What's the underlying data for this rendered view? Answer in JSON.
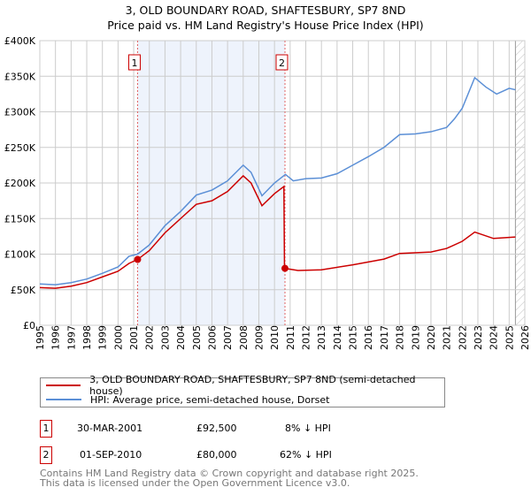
{
  "chart_data": {
    "type": "line",
    "title": "3, OLD BOUNDARY ROAD, SHAFTESBURY, SP7 8ND",
    "subtitle": "Price paid vs. HM Land Registry's House Price Index (HPI)",
    "xlim": [
      1995,
      2026
    ],
    "ylim": [
      0,
      400000
    ],
    "x_ticks": [
      "1995",
      "1996",
      "1997",
      "1998",
      "1999",
      "2000",
      "2001",
      "2002",
      "2003",
      "2004",
      "2005",
      "2006",
      "2007",
      "2008",
      "2009",
      "2010",
      "2011",
      "2012",
      "2013",
      "2014",
      "2015",
      "2016",
      "2017",
      "2018",
      "2019",
      "2020",
      "2021",
      "2022",
      "2023",
      "2024",
      "2025",
      "2026"
    ],
    "y_ticks": [
      {
        "v": 0,
        "l": "£0"
      },
      {
        "v": 50000,
        "l": "£50K"
      },
      {
        "v": 100000,
        "l": "£100K"
      },
      {
        "v": 150000,
        "l": "£150K"
      },
      {
        "v": 200000,
        "l": "£200K"
      },
      {
        "v": 250000,
        "l": "£250K"
      },
      {
        "v": 300000,
        "l": "£300K"
      },
      {
        "v": 350000,
        "l": "£350K"
      },
      {
        "v": 400000,
        "l": "£400K"
      }
    ],
    "grid": true,
    "shaded_range": [
      2001.25,
      2010.67
    ],
    "hatched_from": 2025.4,
    "series": [
      {
        "name": "3, OLD BOUNDARY ROAD, SHAFTESBURY, SP7 8ND (semi-detached house)",
        "color": "#cc0000",
        "x": [
          1995,
          1996,
          1997,
          1998,
          1999,
          2000,
          2000.7,
          2001.25,
          2002,
          2003,
          2004,
          2005,
          2006,
          2007,
          2008,
          2008.5,
          2009.2,
          2010,
          2010.6,
          2010.64,
          2010.67,
          2011.5,
          2013,
          2015,
          2017,
          2018,
          2020,
          2021,
          2022,
          2022.8,
          2024,
          2025.4
        ],
        "y": [
          53000,
          52000,
          55000,
          60000,
          68000,
          76000,
          87000,
          92500,
          105000,
          130000,
          150000,
          170000,
          175000,
          188000,
          210000,
          200000,
          168000,
          185000,
          195000,
          80000,
          80000,
          77000,
          78000,
          85000,
          93000,
          101000,
          103000,
          108000,
          118000,
          131000,
          122000,
          124000
        ]
      },
      {
        "name": "HPI: Average price, semi-detached house, Dorset",
        "color": "#5b8fd6",
        "x": [
          1995,
          1996,
          1997,
          1998,
          1999,
          2000,
          2000.7,
          2001.25,
          2002,
          2003,
          2004,
          2005,
          2006,
          2007,
          2008,
          2008.5,
          2009.2,
          2010,
          2010.7,
          2011.2,
          2012,
          2013,
          2014,
          2015,
          2016,
          2017,
          2018,
          2019,
          2020,
          2021,
          2021.5,
          2022,
          2022.8,
          2023.5,
          2024.2,
          2025,
          2025.4
        ],
        "y": [
          58000,
          57000,
          60000,
          65000,
          73000,
          82000,
          97000,
          100000,
          113000,
          140000,
          160000,
          183000,
          190000,
          203000,
          225000,
          215000,
          182000,
          200000,
          212000,
          203000,
          206000,
          207000,
          213000,
          225000,
          237000,
          250000,
          268000,
          269000,
          272000,
          278000,
          290000,
          305000,
          348000,
          335000,
          325000,
          333000,
          331000
        ]
      }
    ],
    "annotations": [
      {
        "label": "1",
        "x": 2001.25,
        "y": 92500
      },
      {
        "label": "2",
        "x": 2010.67,
        "y": 80000
      }
    ]
  },
  "legend": [
    "3, OLD BOUNDARY ROAD, SHAFTESBURY, SP7 8ND (semi-detached house)",
    "HPI: Average price, semi-detached house, Dorset"
  ],
  "transactions": [
    {
      "n": "1",
      "date": "30-MAR-2001",
      "price": "£92,500",
      "hpi": "8% ↓ HPI"
    },
    {
      "n": "2",
      "date": "01-SEP-2010",
      "price": "£80,000",
      "hpi": "62% ↓ HPI"
    }
  ],
  "footer": [
    "Contains HM Land Registry data © Crown copyright and database right 2025.",
    "This data is licensed under the Open Government Licence v3.0."
  ]
}
